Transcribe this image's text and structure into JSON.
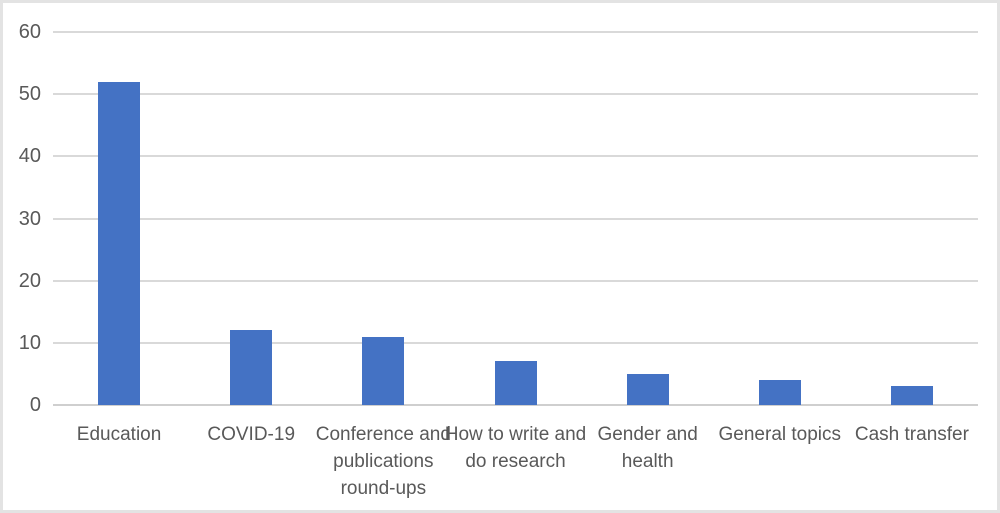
{
  "chart_data": {
    "type": "bar",
    "title": "",
    "xlabel": "",
    "ylabel": "",
    "categories": [
      "Education",
      "COVID-19",
      "Conference and publications round-ups",
      "How to write and do research",
      "Gender and health",
      "General topics",
      "Cash transfer"
    ],
    "categories_wrapped": [
      "Education",
      "COVID-19",
      "Conference and\npublications\nround-ups",
      "How to write and\ndo research",
      "Gender and\nhealth",
      "General topics",
      "Cash transfer"
    ],
    "values": [
      52,
      12,
      11,
      7,
      5,
      4,
      3
    ],
    "ylim": [
      0,
      60
    ],
    "yticks": [
      0,
      10,
      20,
      30,
      40,
      50,
      60
    ],
    "grid": true,
    "legend": false,
    "colors": {
      "bar": "#4472C4",
      "gridline": "#D9D9D9",
      "axis_line": "#CFCFCF",
      "tick_label": "#595959",
      "background": "#FFFFFF",
      "frame_border": "#E3E3E3"
    }
  }
}
